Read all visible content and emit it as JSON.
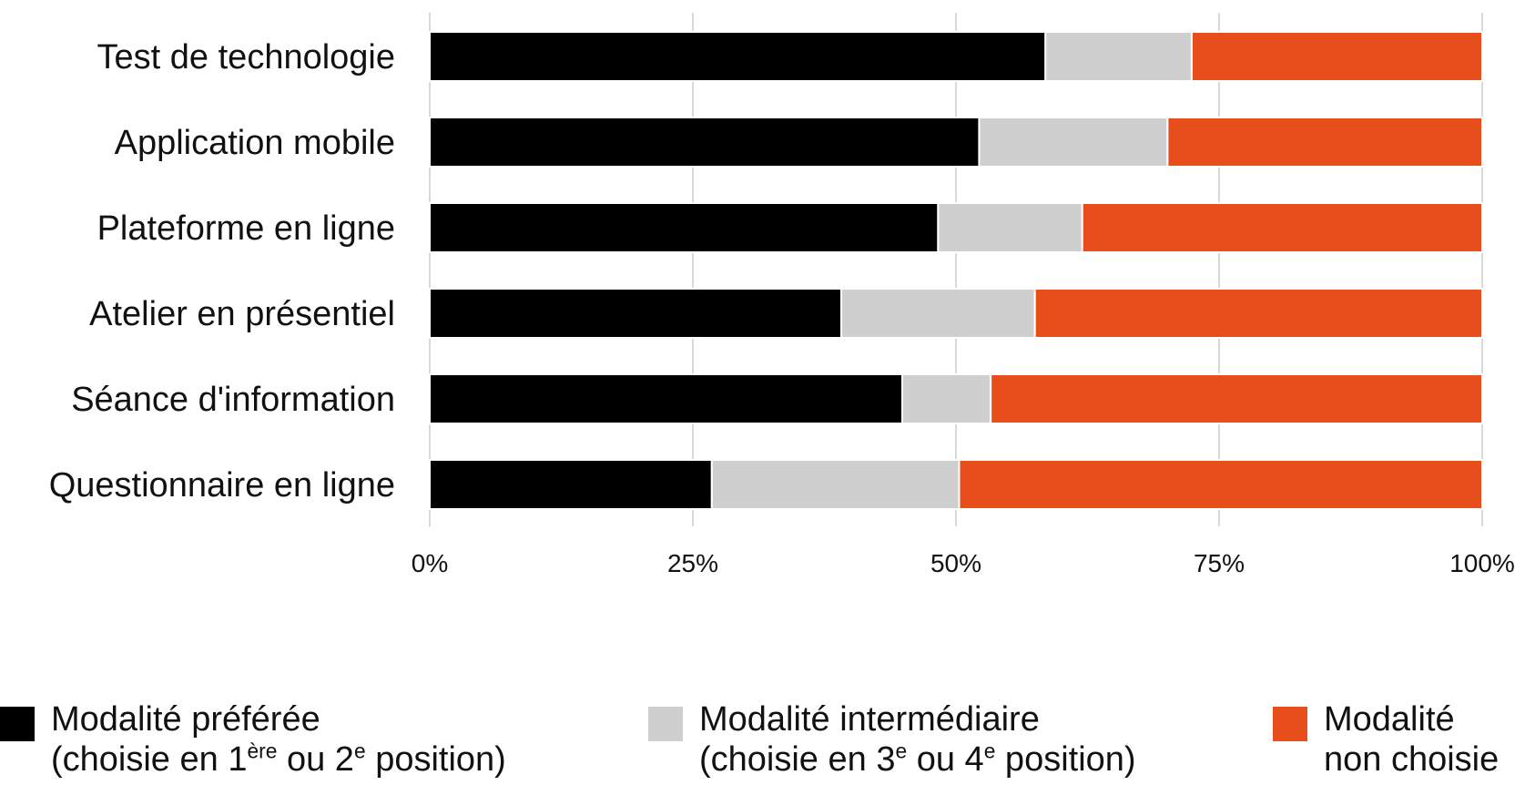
{
  "chart_data": {
    "type": "bar",
    "orientation": "horizontal",
    "stacked": true,
    "categories": [
      "Test de technologie",
      "Application mobile",
      "Plateforme en ligne",
      "Atelier en présentiel",
      "Séance d'information",
      "Questionnaire en ligne"
    ],
    "series": [
      {
        "name": "Modalité préférée (choisie en 1ère ou 2e position)",
        "color": "#000000",
        "values": [
          58.5,
          52.2,
          48.3,
          39.1,
          44.9,
          26.8
        ]
      },
      {
        "name": "Modalité intermédiaire (choisie en 3e ou 4e position)",
        "color": "#d0cfcf",
        "values": [
          13.9,
          17.9,
          13.7,
          18.4,
          8.4,
          23.5
        ]
      },
      {
        "name": "Modalité non choisie",
        "color": "#e84e1c",
        "values": [
          27.6,
          29.9,
          38.0,
          42.5,
          46.7,
          49.7
        ]
      }
    ],
    "xlim": [
      0,
      100
    ],
    "xticks": [
      "0%",
      "25%",
      "50%",
      "75%",
      "100%"
    ],
    "grid": "vertical",
    "legend_position": "bottom"
  },
  "legend": [
    {
      "swatch_color": "#000000",
      "line1": "Modalité préférée",
      "line2": "(choisie en 1ère ou 2e position)"
    },
    {
      "swatch_color": "#d0cfcf",
      "line1": "Modalité intermédiaire",
      "line2": "(choisie en 3e ou 4e position)"
    },
    {
      "swatch_color": "#e84e1c",
      "line1": "Modalité",
      "line2": "non choisie"
    }
  ]
}
